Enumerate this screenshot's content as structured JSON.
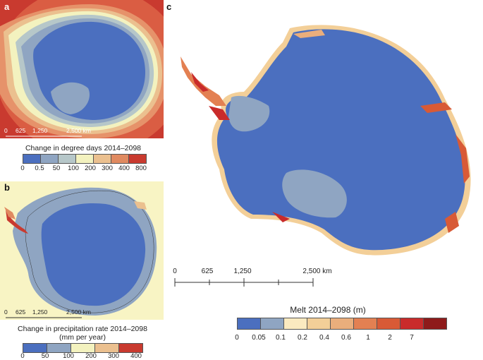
{
  "panels": {
    "a": {
      "letter": "a"
    },
    "b": {
      "letter": "b"
    },
    "c": {
      "letter": "c"
    }
  },
  "scalebars": {
    "a": [
      "0",
      "625",
      "1,250",
      "2,500 km"
    ],
    "b": [
      "0",
      "625",
      "1,250",
      "2,500 km"
    ],
    "c": [
      "0",
      "625",
      "1,250",
      "2,500 km"
    ]
  },
  "legend_a": {
    "title": "Change in degree days 2014–2098",
    "ticks": [
      "0",
      "0.5",
      "50",
      "100",
      "200",
      "300",
      "400",
      "800"
    ],
    "colors": [
      "#4b6fbf",
      "#8fa5c2",
      "#b6c7c9",
      "#f3f2bf",
      "#ebc08f",
      "#e08a60",
      "#c93a2f"
    ]
  },
  "legend_b": {
    "title_line1": "Change in precipitation rate 2014–2098",
    "title_line2": "(mm per year)",
    "ticks": [
      "0",
      "50",
      "100",
      "200",
      "300",
      "400"
    ],
    "colors": [
      "#4b6fbf",
      "#8fa5c2",
      "#f3f2bf",
      "#ebc08f",
      "#c93a2f"
    ]
  },
  "legend_c": {
    "title": "Melt 2014–2098 (m)",
    "ticks": [
      "0",
      "0.05",
      "0.1",
      "0.2",
      "0.4",
      "0.6",
      "1",
      "2",
      "7"
    ],
    "colors": [
      "#4b6fbf",
      "#8fa5c2",
      "#fbeac0",
      "#f3cf98",
      "#eaae7c",
      "#e38052",
      "#d85a36",
      "#c92b2b",
      "#8e1b1b"
    ]
  }
}
